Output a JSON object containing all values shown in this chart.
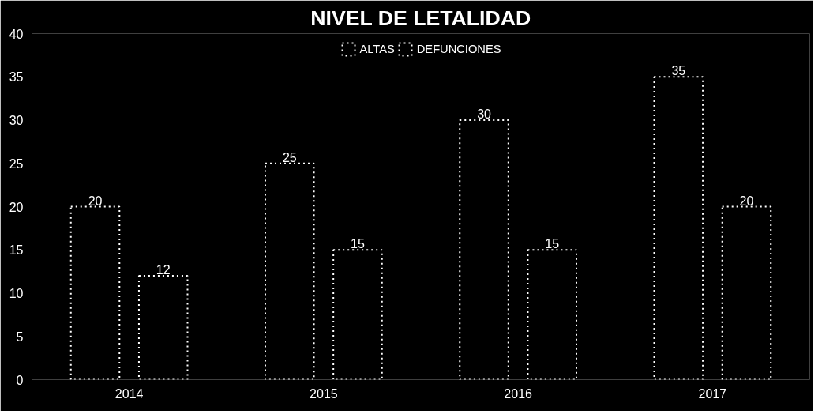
{
  "chart_data": {
    "type": "bar",
    "title": "NIVEL DE LETALIDAD",
    "categories": [
      "2014",
      "2015",
      "2016",
      "2017"
    ],
    "series": [
      {
        "name": "ALTAS",
        "color": "#000000",
        "values": [
          20,
          25,
          30,
          35
        ]
      },
      {
        "name": "DEFUNCIONES",
        "color": "#000000",
        "values": [
          12,
          15,
          15,
          20
        ]
      }
    ],
    "ylim": [
      0,
      40
    ],
    "yticks": [
      0,
      5,
      10,
      15,
      20,
      25,
      30,
      35,
      40
    ],
    "data_labels": true,
    "legend": "top",
    "grid": false
  }
}
